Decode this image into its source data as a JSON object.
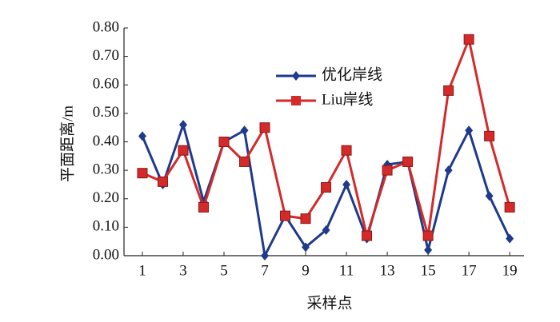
{
  "chart_data": {
    "type": "line",
    "x_label": "采样点",
    "y_label": "平面距离/m",
    "x": [
      1,
      2,
      3,
      4,
      5,
      6,
      7,
      8,
      9,
      10,
      11,
      12,
      13,
      14,
      15,
      16,
      17,
      18,
      19
    ],
    "series": [
      {
        "name": "优化岸线",
        "color": "#1f3a8a",
        "marker": "diamond",
        "values": [
          0.42,
          0.25,
          0.46,
          0.19,
          0.4,
          0.44,
          0.0,
          0.14,
          0.03,
          0.09,
          0.25,
          0.06,
          0.32,
          0.33,
          0.02,
          0.3,
          0.44,
          0.21,
          0.06
        ]
      },
      {
        "name": "Liu岸线",
        "color": "#d42a2a",
        "marker": "square",
        "values": [
          0.29,
          0.26,
          0.37,
          0.17,
          0.4,
          0.33,
          0.45,
          0.14,
          0.13,
          0.24,
          0.37,
          0.07,
          0.3,
          0.33,
          0.07,
          0.58,
          0.76,
          0.42,
          0.17
        ]
      }
    ],
    "xlim": [
      0.1,
      19.7
    ],
    "xticks": [
      1,
      3,
      5,
      7,
      9,
      11,
      13,
      15,
      17,
      19
    ],
    "ylim": [
      0,
      0.8
    ],
    "yticks": [
      {
        "value": 0,
        "label": "0.00"
      },
      {
        "value": 0.1,
        "label": "0.10"
      },
      {
        "value": 0.2,
        "label": "0.20"
      },
      {
        "value": 0.3,
        "label": "0.30"
      },
      {
        "value": 0.4,
        "label": "0.40"
      },
      {
        "value": 0.5,
        "label": "0.50"
      },
      {
        "value": 0.6,
        "label": "0.60"
      },
      {
        "value": 0.7,
        "label": "0.70"
      },
      {
        "value": 0.8,
        "label": "0.80"
      }
    ],
    "grid": false
  }
}
